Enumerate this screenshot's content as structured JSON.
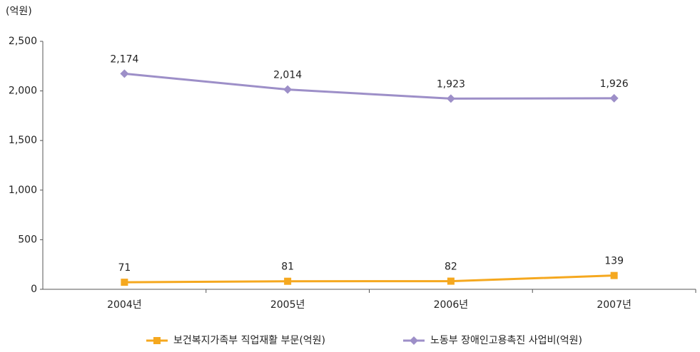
{
  "chart_data": {
    "type": "line",
    "y_unit": "(억원)",
    "categories": [
      "2004년",
      "2005년",
      "2006년",
      "2007년"
    ],
    "series": [
      {
        "name": "보건복지가족부 직업재활 부문(억원)",
        "color": "#f5a81f",
        "marker": "square",
        "values": [
          71,
          81,
          82,
          139
        ]
      },
      {
        "name": "노동부 장애인고용촉진 사업비(억원)",
        "color": "#9d8fc8",
        "marker": "diamond",
        "values": [
          2174,
          2014,
          1923,
          1926
        ],
        "value_labels": [
          "2,174",
          "2,014",
          "1,923",
          "1,926"
        ]
      }
    ],
    "ylim": [
      0,
      2500
    ],
    "yticks": [
      0,
      500,
      {
        "value": 1000,
        "label": "1,000"
      },
      {
        "value": 1500,
        "label": "1,500"
      },
      {
        "value": 2000,
        "label": "2,000"
      },
      {
        "value": 2500,
        "label": "2,500"
      }
    ],
    "legend": "bottom"
  }
}
